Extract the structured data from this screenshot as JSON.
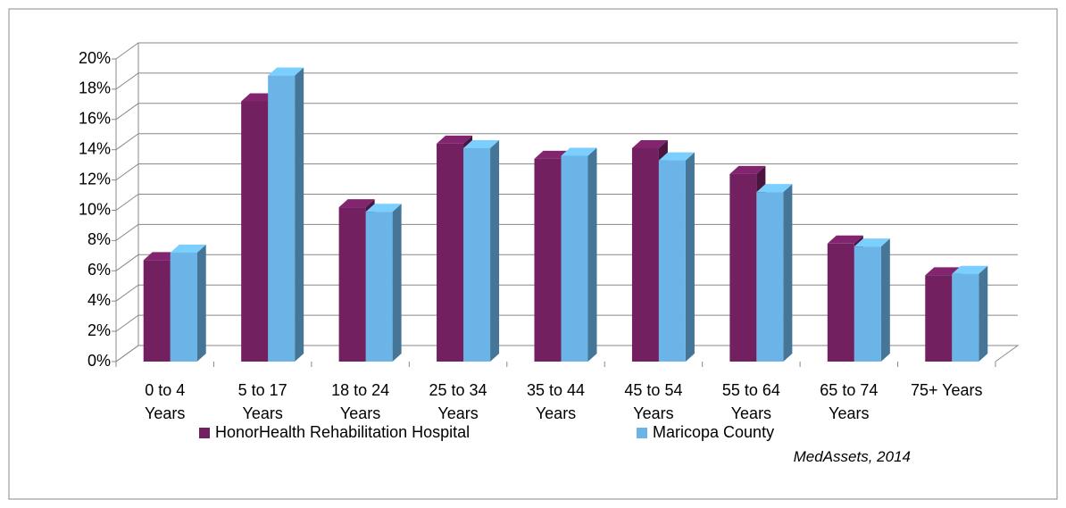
{
  "chart_data": {
    "type": "bar3d",
    "categories": [
      "0 to 4 Years",
      "5 to 17 Years",
      "18 to 24 Years",
      "25 to 34 Years",
      "35 to 44 Years",
      "45 to 54 Years",
      "55 to 64 Years",
      "65 to 74 Years",
      "75+ Years"
    ],
    "series": [
      {
        "name": "HonorHealth Rehabilitation Hospital",
        "color": "#722060",
        "values": [
          6.7,
          17.2,
          10.2,
          14.4,
          13.4,
          14.1,
          12.4,
          7.8,
          5.7
        ]
      },
      {
        "name": "Maricopa County",
        "color": "#6ab4e8",
        "values": [
          7.2,
          18.9,
          9.9,
          14.1,
          13.6,
          13.3,
          11.2,
          7.6,
          5.8
        ]
      }
    ],
    "ylim": [
      0,
      20
    ],
    "yticks": [
      {
        "value": 0,
        "label": "0%"
      },
      {
        "value": 2,
        "label": "2%"
      },
      {
        "value": 4,
        "label": "4%"
      },
      {
        "value": 6,
        "label": "6%"
      },
      {
        "value": 8,
        "label": "8%"
      },
      {
        "value": 10,
        "label": "10%"
      },
      {
        "value": 12,
        "label": "12%"
      },
      {
        "value": 14,
        "label": "14%"
      },
      {
        "value": 16,
        "label": "16%"
      },
      {
        "value": 18,
        "label": "18%"
      },
      {
        "value": 20,
        "label": "20%"
      }
    ],
    "grid": true,
    "source": "MedAssets, 2014"
  }
}
